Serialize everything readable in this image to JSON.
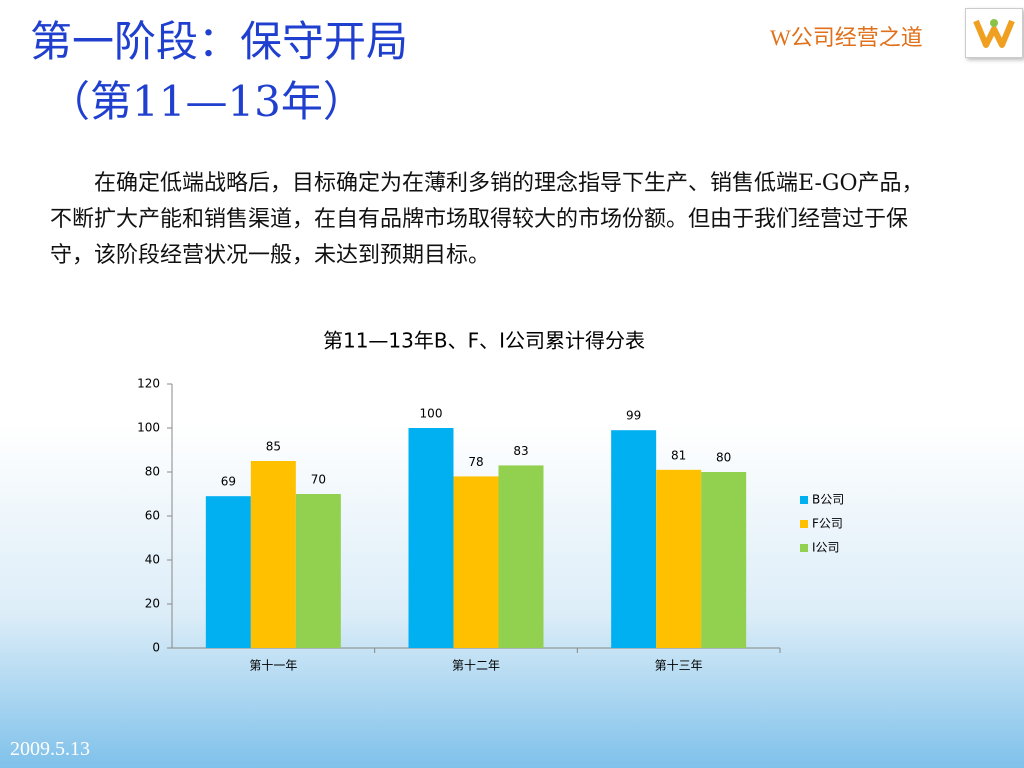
{
  "slide": {
    "title_line1": "第一阶段：保守开局",
    "title_line2": "（第11—13年）",
    "brand": "W公司经营之道",
    "paragraph": "在确定低端战略后，目标确定为在薄利多销的理念指导下生产、销售低端E-GO产品，不断扩大产能和销售渠道，在自有品牌市场取得较大的市场份额。但由于我们经营过于保守，该阶段经营状况一般，未达到预期目标。",
    "date": "2009.5.13"
  },
  "chart_data": {
    "type": "bar",
    "title": "第11—13年B、F、I公司累计得分表",
    "categories": [
      "第十一年",
      "第十二年",
      "第十三年"
    ],
    "series": [
      {
        "name": "B公司",
        "color": "#00b0f0",
        "values": [
          69,
          100,
          99
        ]
      },
      {
        "name": "F公司",
        "color": "#ffc000",
        "values": [
          85,
          78,
          81
        ]
      },
      {
        "name": "I公司",
        "color": "#92d050",
        "values": [
          70,
          83,
          80
        ]
      }
    ],
    "ylim": [
      0,
      120
    ],
    "yticks": [
      0,
      20,
      40,
      60,
      80,
      100,
      120
    ],
    "grid": false,
    "legend": "right"
  }
}
